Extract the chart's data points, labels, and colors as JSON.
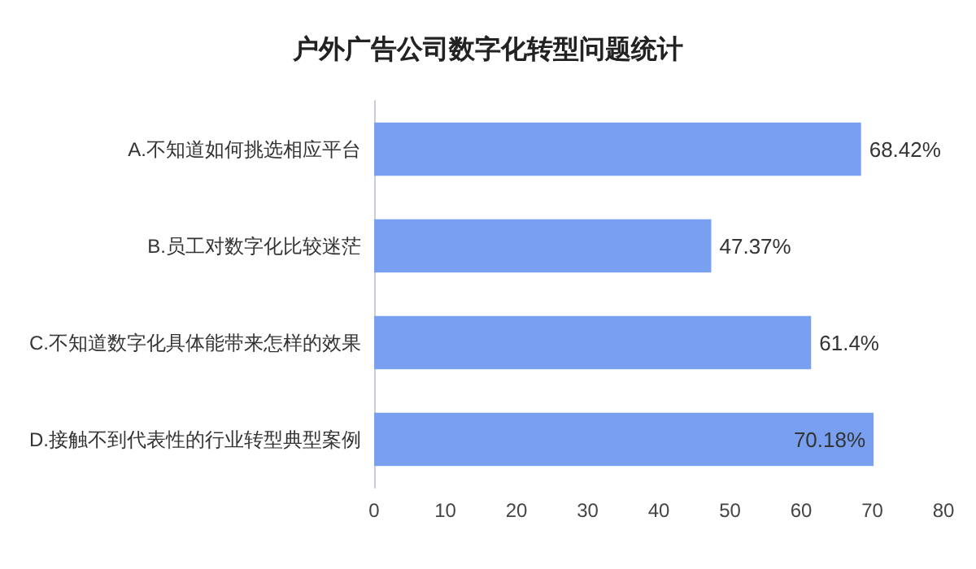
{
  "chart_data": {
    "type": "bar",
    "orientation": "horizontal",
    "title": "户外广告公司数字化转型问题统计",
    "categories": [
      "A.不知道如何挑选相应平台",
      "B.员工对数字化比较迷茫",
      "C.不知道数字化具体能带来怎样的效果",
      "D.接触不到代表性的行业转型典型案例"
    ],
    "values": [
      68.42,
      47.37,
      61.4,
      70.18
    ],
    "value_labels": [
      "68.42%",
      "47.37%",
      "61.4%",
      "70.18%"
    ],
    "color": "#79a0f0",
    "xlim": [
      0,
      80
    ],
    "xticks": [
      0,
      10,
      20,
      30,
      40,
      50,
      60,
      70,
      80
    ],
    "grid": false
  }
}
